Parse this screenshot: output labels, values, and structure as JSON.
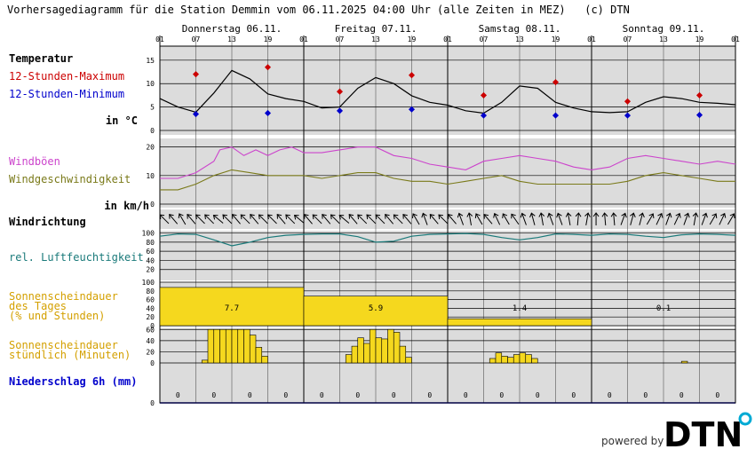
{
  "header": {
    "title": "Vorhersagediagramm für die Station Demmin vom 06.11.2025 04:00 Uhr (alle Zeiten in MEZ)   (c) DTN"
  },
  "footer": {
    "powered_by": "powered by",
    "logo_text": "DTN"
  },
  "chart_data": {
    "type": "line",
    "days": [
      "Donnerstag 06.11.",
      "Freitag 07.11.",
      "Samstag 08.11.",
      "Sonntag 09.11."
    ],
    "hour_ticks": [
      "01",
      "07",
      "13",
      "19",
      "01",
      "07",
      "13",
      "19",
      "01",
      "07",
      "13",
      "19",
      "01",
      "07",
      "13",
      "19",
      "01"
    ],
    "panels": {
      "temperature": {
        "labels": [
          "Temperatur",
          "12-Stunden-Maximum",
          "12-Stunden-Minimum",
          "in °C"
        ],
        "yticks": [
          0,
          5,
          10,
          15
        ],
        "ylim": [
          0,
          18
        ],
        "colors": {
          "curve": "#000000",
          "max": "#cc0000",
          "min": "#0000cc"
        },
        "curve": [
          [
            0,
            6.8
          ],
          [
            3,
            5
          ],
          [
            6,
            3.9
          ],
          [
            9,
            8
          ],
          [
            12,
            12.8
          ],
          [
            15,
            11
          ],
          [
            18,
            7.8
          ],
          [
            21,
            6.8
          ],
          [
            24,
            6.2
          ],
          [
            27,
            4.8
          ],
          [
            30,
            5
          ],
          [
            33,
            9
          ],
          [
            36,
            11.3
          ],
          [
            39,
            10
          ],
          [
            42,
            7.4
          ],
          [
            45,
            6
          ],
          [
            48,
            5.4
          ],
          [
            51,
            4.2
          ],
          [
            54,
            3.7
          ],
          [
            57,
            6
          ],
          [
            60,
            9.5
          ],
          [
            63,
            9
          ],
          [
            66,
            6
          ],
          [
            69,
            4.8
          ],
          [
            72,
            4
          ],
          [
            75,
            3.8
          ],
          [
            78,
            4
          ],
          [
            81,
            6
          ],
          [
            84,
            7.2
          ],
          [
            87,
            6.8
          ],
          [
            90,
            6
          ],
          [
            93,
            5.8
          ],
          [
            96,
            5.5
          ]
        ],
        "max_points": [
          [
            6,
            12
          ],
          [
            18,
            13.5
          ],
          [
            30,
            8.3
          ],
          [
            42,
            11.8
          ],
          [
            54,
            7.5
          ],
          [
            66,
            10.3
          ],
          [
            78,
            6.2
          ],
          [
            90,
            7.5
          ]
        ],
        "min_points": [
          [
            6,
            3.5
          ],
          [
            18,
            3.7
          ],
          [
            30,
            4.2
          ],
          [
            42,
            4.5
          ],
          [
            54,
            3.2
          ],
          [
            66,
            3.2
          ],
          [
            78,
            3.2
          ],
          [
            90,
            3.3
          ]
        ]
      },
      "wind": {
        "labels": [
          "Windböen",
          "Windgeschwindigkeit",
          "in km/h"
        ],
        "yticks": [
          0,
          10,
          20
        ],
        "ylim": [
          0,
          23
        ],
        "colors": {
          "gusts": "#cc44cc",
          "speed": "#7a7a1a"
        },
        "gusts": [
          [
            0,
            9
          ],
          [
            3,
            9
          ],
          [
            6,
            11
          ],
          [
            9,
            15
          ],
          [
            10,
            19
          ],
          [
            12,
            20
          ],
          [
            14,
            17
          ],
          [
            16,
            19
          ],
          [
            18,
            17
          ],
          [
            20,
            19
          ],
          [
            22,
            20
          ],
          [
            24,
            18
          ],
          [
            27,
            18
          ],
          [
            30,
            19
          ],
          [
            33,
            20
          ],
          [
            36,
            20
          ],
          [
            39,
            17
          ],
          [
            42,
            16
          ],
          [
            45,
            14
          ],
          [
            48,
            13
          ],
          [
            51,
            12
          ],
          [
            54,
            15
          ],
          [
            57,
            16
          ],
          [
            60,
            17
          ],
          [
            63,
            16
          ],
          [
            66,
            15
          ],
          [
            69,
            13
          ],
          [
            72,
            12
          ],
          [
            75,
            13
          ],
          [
            78,
            16
          ],
          [
            81,
            17
          ],
          [
            84,
            16
          ],
          [
            87,
            15
          ],
          [
            90,
            14
          ],
          [
            93,
            15
          ],
          [
            96,
            14
          ]
        ],
        "speed": [
          [
            0,
            5
          ],
          [
            3,
            5
          ],
          [
            6,
            7
          ],
          [
            9,
            10
          ],
          [
            12,
            12
          ],
          [
            15,
            11
          ],
          [
            18,
            10
          ],
          [
            21,
            10
          ],
          [
            24,
            10
          ],
          [
            27,
            9
          ],
          [
            30,
            10
          ],
          [
            33,
            11
          ],
          [
            36,
            11
          ],
          [
            39,
            9
          ],
          [
            42,
            8
          ],
          [
            45,
            8
          ],
          [
            48,
            7
          ],
          [
            51,
            8
          ],
          [
            54,
            9
          ],
          [
            57,
            10
          ],
          [
            60,
            8
          ],
          [
            63,
            7
          ],
          [
            66,
            7
          ],
          [
            69,
            7
          ],
          [
            72,
            7
          ],
          [
            75,
            7
          ],
          [
            78,
            8
          ],
          [
            81,
            10
          ],
          [
            84,
            11
          ],
          [
            87,
            10
          ],
          [
            90,
            9
          ],
          [
            93,
            8
          ],
          [
            96,
            8
          ]
        ]
      },
      "wind_direction": {
        "label": "Windrichtung",
        "arrows_deg": [
          315,
          320,
          330,
          320,
          315,
          315,
          310,
          315,
          320,
          315,
          320,
          315,
          315,
          320,
          315,
          310,
          320,
          315,
          320,
          315,
          310,
          320,
          315,
          315,
          315,
          320,
          315,
          320,
          330,
          340,
          320,
          315,
          320,
          340,
          350,
          330,
          320,
          335,
          330,
          325,
          340,
          345,
          350,
          340,
          340,
          350,
          5,
          10,
          0,
          355,
          355,
          20,
          15,
          15,
          30,
          25,
          20,
          25,
          20,
          10,
          20,
          30,
          25,
          30
        ]
      },
      "humidity": {
        "label": "rel. Luftfeuchtigkeit",
        "yticks": [
          20,
          40,
          60,
          80,
          100
        ],
        "ylim": [
          0,
          105
        ],
        "color": "#1a7a7a",
        "values": [
          [
            0,
            93
          ],
          [
            3,
            98
          ],
          [
            6,
            97
          ],
          [
            9,
            85
          ],
          [
            12,
            72
          ],
          [
            15,
            80
          ],
          [
            18,
            90
          ],
          [
            21,
            95
          ],
          [
            24,
            97
          ],
          [
            27,
            98
          ],
          [
            30,
            98
          ],
          [
            33,
            92
          ],
          [
            36,
            80
          ],
          [
            39,
            82
          ],
          [
            42,
            93
          ],
          [
            45,
            97
          ],
          [
            48,
            98
          ],
          [
            51,
            99
          ],
          [
            54,
            97
          ],
          [
            57,
            90
          ],
          [
            60,
            85
          ],
          [
            63,
            90
          ],
          [
            66,
            98
          ],
          [
            69,
            97
          ],
          [
            72,
            95
          ],
          [
            75,
            98
          ],
          [
            78,
            97
          ],
          [
            81,
            93
          ],
          [
            84,
            90
          ],
          [
            87,
            96
          ],
          [
            90,
            98
          ],
          [
            93,
            97
          ],
          [
            96,
            95
          ]
        ]
      },
      "sunshine_daily": {
        "labels": [
          "Sonnenscheindauer",
          "des Tages",
          "(% und Stunden)"
        ],
        "yticks": [
          0,
          20,
          40,
          60,
          80,
          100
        ],
        "ylim": [
          0,
          100
        ],
        "color": "#f5d81e",
        "percent": [
          88,
          68,
          16,
          0
        ],
        "hours": [
          "7.7",
          "5.9",
          "1.4",
          "0.1"
        ]
      },
      "sunshine_hourly": {
        "labels": [
          "Sonnenscheindauer",
          "stündlich (Minuten)"
        ],
        "yticks": [
          0,
          20,
          40,
          60
        ],
        "ylim": [
          0,
          62
        ],
        "color": "#f5d81e",
        "values": [
          [
            7,
            5
          ],
          [
            8,
            60
          ],
          [
            9,
            60
          ],
          [
            10,
            60
          ],
          [
            11,
            60
          ],
          [
            12,
            60
          ],
          [
            13,
            60
          ],
          [
            14,
            60
          ],
          [
            15,
            50
          ],
          [
            16,
            28
          ],
          [
            17,
            12
          ],
          [
            31,
            15
          ],
          [
            32,
            30
          ],
          [
            33,
            45
          ],
          [
            34,
            35
          ],
          [
            35,
            60
          ],
          [
            36,
            45
          ],
          [
            37,
            43
          ],
          [
            38,
            60
          ],
          [
            39,
            55
          ],
          [
            40,
            30
          ],
          [
            41,
            10
          ],
          [
            55,
            8
          ],
          [
            56,
            18
          ],
          [
            57,
            12
          ],
          [
            58,
            10
          ],
          [
            59,
            15
          ],
          [
            60,
            18
          ],
          [
            61,
            15
          ],
          [
            62,
            8
          ],
          [
            87,
            3
          ]
        ]
      },
      "precipitation": {
        "label": "Niederschlag 6h (mm)",
        "color": "#0000cc",
        "values": [
          "0",
          "0",
          "0",
          "0",
          "0",
          "0",
          "0",
          "0",
          "0",
          "0",
          "0",
          "0",
          "0",
          "0",
          "0",
          "0"
        ]
      }
    }
  }
}
